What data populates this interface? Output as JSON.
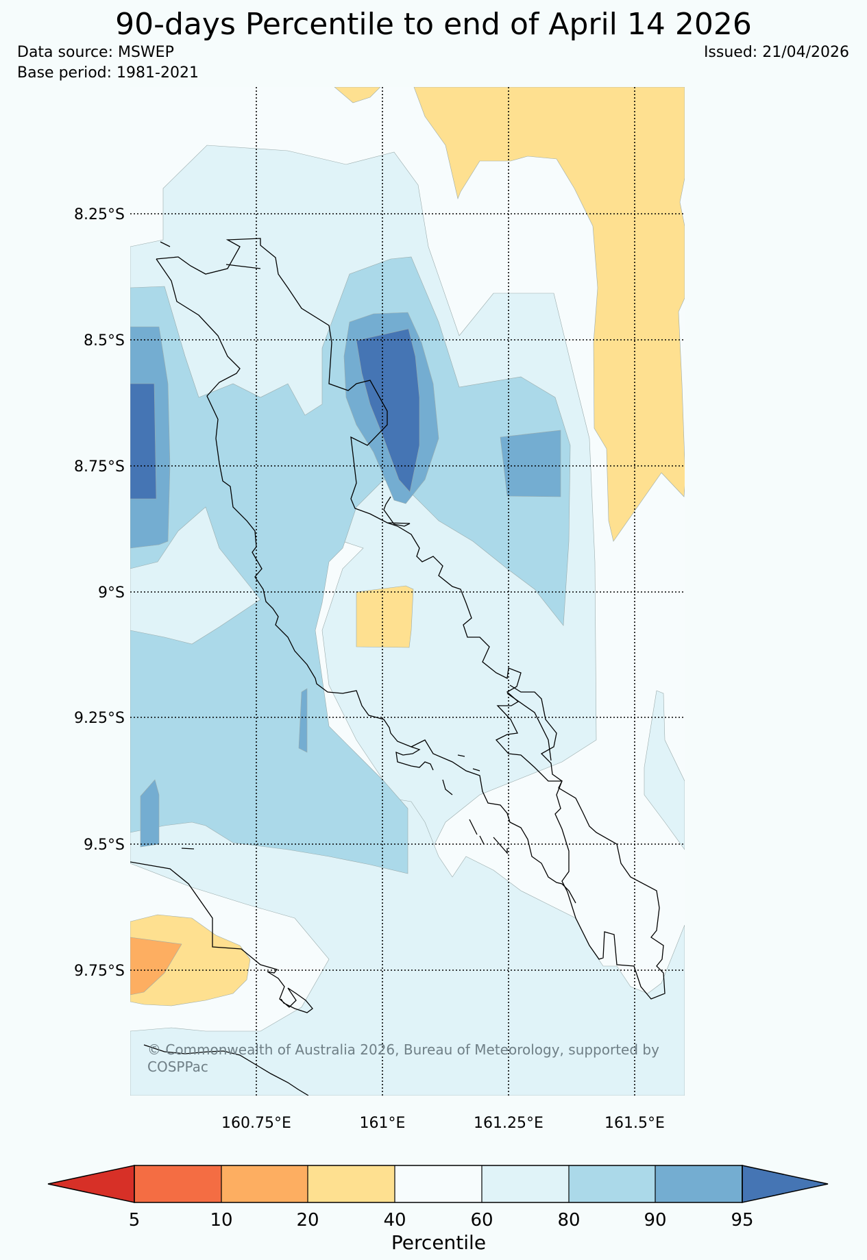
{
  "header": {
    "title": "90-days Percentile to end of April 14 2026",
    "data_source": "Data source: MSWEP",
    "base_period": "Base period: 1981-2021",
    "issued": "Issued: 21/04/2026"
  },
  "map": {
    "lat_labels": [
      "8.25°S",
      "8.5°S",
      "8.75°S",
      "9°S",
      "9.25°S",
      "9.5°S",
      "9.75°S"
    ],
    "lon_labels": [
      "160.75°E",
      "161°E",
      "161.25°E",
      "161.5°E"
    ],
    "copyright": "© Commonwealth of Australia 2026, Bureau of Meteorology, supported by COSPPac"
  },
  "colorbar": {
    "title": "Percentile",
    "ticks": [
      "5",
      "10",
      "20",
      "40",
      "60",
      "80",
      "90",
      "95"
    ],
    "colors": [
      "#d73027",
      "#f46d43",
      "#fdae61",
      "#fee090",
      "#f7fcfd",
      "#e0f3f8",
      "#abd9e9",
      "#74add1",
      "#4575b4"
    ]
  }
}
